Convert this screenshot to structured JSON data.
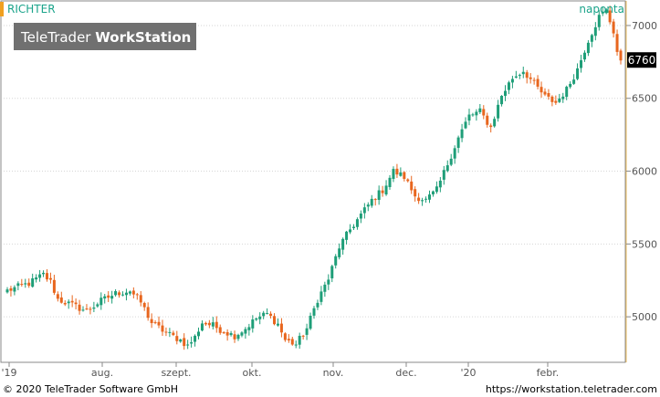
{
  "header": {
    "symbol": "RICHTER",
    "period": "naponta",
    "logo_regular": "TeleTrader ",
    "logo_bold": "WorkStation"
  },
  "footer": {
    "copyright": "© 2020 TeleTrader Software GmbH",
    "url": "https://workstation.teletrader.com"
  },
  "colors": {
    "up": "#1e9e78",
    "down": "#e8661e",
    "accent_orange": "#f0a020",
    "header_teal": "#1aa38a",
    "logo_bg": "#707070",
    "price_badge_bg": "#000000",
    "axis_line": "#f0c060"
  },
  "chart_data": {
    "type": "candlestick",
    "title": "RICHTER",
    "period": "naponta",
    "ylim": [
      4700,
      7150
    ],
    "y_ticks": [
      5000,
      5500,
      6000,
      6500,
      7000
    ],
    "x_tick_labels": [
      "'19",
      "aug.",
      "szept.",
      "okt.",
      "nov.",
      "dec.",
      "'20",
      "febr."
    ],
    "last_price": 6760,
    "grid": true,
    "description_of_series": "daily OHLC candles, green = up day, orange = down day",
    "anchors": [
      [
        0,
        5180
      ],
      [
        6,
        5230
      ],
      [
        10,
        5290
      ],
      [
        12,
        5240
      ],
      [
        14,
        5120
      ],
      [
        18,
        5080
      ],
      [
        22,
        5040
      ],
      [
        26,
        5110
      ],
      [
        30,
        5160
      ],
      [
        34,
        5180
      ],
      [
        37,
        5100
      ],
      [
        40,
        4960
      ],
      [
        44,
        4890
      ],
      [
        48,
        4840
      ],
      [
        50,
        4800
      ],
      [
        52,
        4860
      ],
      [
        54,
        4960
      ],
      [
        57,
        4940
      ],
      [
        60,
        4900
      ],
      [
        63,
        4870
      ],
      [
        66,
        4920
      ],
      [
        69,
        4990
      ],
      [
        72,
        5020
      ],
      [
        75,
        4950
      ],
      [
        77,
        4840
      ],
      [
        80,
        4810
      ],
      [
        83,
        4920
      ],
      [
        86,
        5120
      ],
      [
        89,
        5260
      ],
      [
        92,
        5480
      ],
      [
        95,
        5600
      ],
      [
        98,
        5700
      ],
      [
        101,
        5800
      ],
      [
        104,
        5870
      ],
      [
        107,
        6000
      ],
      [
        110,
        5960
      ],
      [
        113,
        5830
      ],
      [
        116,
        5800
      ],
      [
        119,
        5870
      ],
      [
        122,
        6050
      ],
      [
        125,
        6230
      ],
      [
        128,
        6380
      ],
      [
        131,
        6410
      ],
      [
        134,
        6300
      ],
      [
        137,
        6520
      ],
      [
        140,
        6640
      ],
      [
        143,
        6690
      ],
      [
        146,
        6600
      ],
      [
        149,
        6510
      ],
      [
        152,
        6470
      ],
      [
        155,
        6560
      ],
      [
        158,
        6700
      ],
      [
        161,
        6900
      ],
      [
        164,
        7060
      ],
      [
        166,
        7100
      ],
      [
        168,
        6960
      ],
      [
        169,
        6820
      ],
      [
        170,
        6760
      ]
    ]
  }
}
